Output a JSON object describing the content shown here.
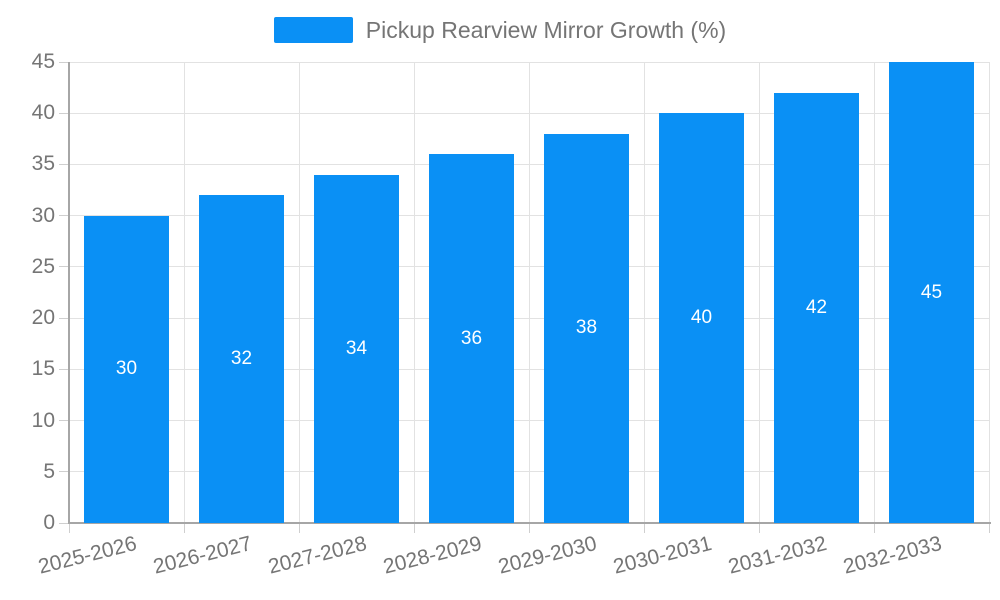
{
  "legend": {
    "label": "Pickup Rearview Mirror Growth (%)"
  },
  "colors": {
    "background": "#ffffff",
    "bar": "#0a90f5",
    "bar_label": "#ffffff",
    "axis_label": "#757575",
    "grid": "#e2e2e2",
    "axis_line": "#a6a6a6",
    "tick": "#cfcfcf"
  },
  "chart_data": {
    "type": "bar",
    "title": "Pickup Rearview Mirror Growth (%)",
    "categories": [
      "2025-2026",
      "2026-2027",
      "2027-2028",
      "2028-2029",
      "2029-2030",
      "2030-2031",
      "2031-2032",
      "2032-2033"
    ],
    "values": [
      30,
      32,
      34,
      36,
      38,
      40,
      42,
      45
    ],
    "xlabel": "",
    "ylabel": "",
    "ylim": [
      0,
      45
    ],
    "ytick_step": 5,
    "yticks": [
      0,
      5,
      10,
      15,
      20,
      25,
      30,
      35,
      40,
      45
    ],
    "grid": "horizontal and vertical",
    "legend_position": "top-center",
    "bar_label_position": "inside-middle",
    "x_label_rotation_deg": -14
  }
}
